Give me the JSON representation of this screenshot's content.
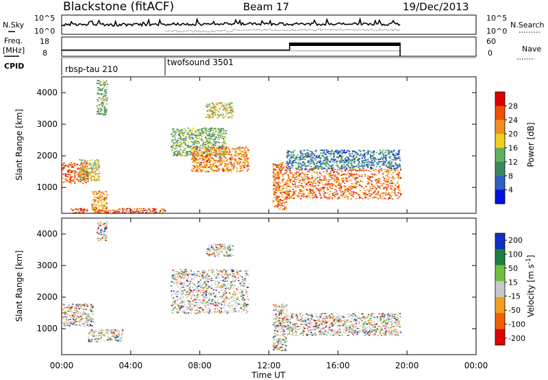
{
  "header": {
    "station": "Blackstone (fitACF)",
    "beam": "Beam 17",
    "date": "19/Dec/2013"
  },
  "noise_panel": {
    "left_label": "N.Sky",
    "left_ticks": [
      "10^5",
      "10^0"
    ],
    "right_ticks": [
      "10^5",
      "10^0"
    ],
    "right_label": "N.Search"
  },
  "freq_panel": {
    "label_line1": "Freq.",
    "label_line2": "[MHz]",
    "left_ticks": [
      "18",
      "8"
    ],
    "right_ticks": [
      "60",
      "0"
    ],
    "right_label": "Nave"
  },
  "cpid_panel": {
    "label": "CPID",
    "programs": [
      {
        "name": "rbsp-tau 210",
        "start_hour": 0.0
      },
      {
        "name": "twofsound 3501",
        "start_hour": 6.0
      }
    ]
  },
  "colors": {
    "power_scale": [
      "#0010e0",
      "#3060c0",
      "#3a8a60",
      "#60b060",
      "#f0d020",
      "#f09020",
      "#f05000",
      "#e00000"
    ],
    "velocity_scale": [
      "#1030c0",
      "#208040",
      "#70c040",
      "#c8c8c8",
      "#f0a020",
      "#f06000",
      "#e00000"
    ]
  },
  "chart_data": [
    {
      "type": "heatmap",
      "panel": "power",
      "ylabel": "Slant Range [km]",
      "y_ticks": [
        "1000",
        "2000",
        "3000",
        "4000"
      ],
      "ylim": [
        180,
        4500
      ],
      "xlim": [
        0,
        24
      ],
      "colorbar": {
        "label": "Power [dB]",
        "ticks": [
          "4",
          "8",
          "12",
          "16",
          "20",
          "24",
          "28"
        ],
        "range": [
          0,
          32
        ]
      },
      "scatter_regions": [
        {
          "t0": 0.0,
          "t1": 1.5,
          "r0": 1150,
          "r1": 1800,
          "level": 0.85
        },
        {
          "t0": 1.0,
          "t1": 2.2,
          "r0": 1200,
          "r1": 1900,
          "level": 0.55
        },
        {
          "t0": 1.7,
          "t1": 2.6,
          "r0": 200,
          "r1": 900,
          "level": 0.7
        },
        {
          "t0": 0.5,
          "t1": 6.0,
          "r0": 200,
          "r1": 350,
          "level": 0.9
        },
        {
          "t0": 2.0,
          "t1": 2.6,
          "r0": 3300,
          "r1": 4400,
          "level": 0.35
        },
        {
          "t0": 6.3,
          "t1": 9.5,
          "r0": 2000,
          "r1": 2900,
          "level": 0.4
        },
        {
          "t0": 7.5,
          "t1": 10.8,
          "r0": 1500,
          "r1": 2300,
          "level": 0.75
        },
        {
          "t0": 8.3,
          "t1": 9.9,
          "r0": 3200,
          "r1": 3700,
          "level": 0.55
        },
        {
          "t0": 12.2,
          "t1": 13.0,
          "r0": 300,
          "r1": 1800,
          "level": 0.8
        },
        {
          "t0": 13.0,
          "t1": 19.6,
          "r0": 650,
          "r1": 1600,
          "level": 0.8
        },
        {
          "t0": 13.0,
          "t1": 19.6,
          "r0": 1600,
          "r1": 2200,
          "level": 0.25
        }
      ]
    },
    {
      "type": "heatmap",
      "panel": "velocity",
      "ylabel": "Slant Range [km]",
      "y_ticks": [
        "1000",
        "2000",
        "3000",
        "4000"
      ],
      "ylim": [
        180,
        4500
      ],
      "xlim": [
        0,
        24
      ],
      "colorbar": {
        "label": "Velocity [m s",
        "label_sup": "-1",
        "label_end": "]",
        "ticks": [
          "200",
          "100",
          "50",
          "15",
          "-15",
          "-50",
          "-100",
          "-200"
        ],
        "range": [
          -250,
          250
        ]
      },
      "scatter_regions": [
        {
          "t0": 0.0,
          "t1": 1.8,
          "r0": 1100,
          "r1": 1800,
          "level": 0.5
        },
        {
          "t0": 1.5,
          "t1": 3.5,
          "r0": 600,
          "r1": 1000,
          "level": 0.5
        },
        {
          "t0": 2.0,
          "t1": 2.6,
          "r0": 3800,
          "r1": 4400,
          "level": 0.1
        },
        {
          "t0": 6.3,
          "t1": 10.8,
          "r0": 1500,
          "r1": 2900,
          "level": 0.5
        },
        {
          "t0": 8.3,
          "t1": 9.9,
          "r0": 3300,
          "r1": 3700,
          "level": 0.3
        },
        {
          "t0": 12.2,
          "t1": 13.0,
          "r0": 300,
          "r1": 1800,
          "level": 0.65
        },
        {
          "t0": 13.0,
          "t1": 19.6,
          "r0": 800,
          "r1": 1500,
          "level": 0.5
        }
      ]
    }
  ],
  "x_axis": {
    "ticks": [
      "00:00",
      "04:00",
      "08:00",
      "12:00",
      "16:00",
      "20:00",
      "00:00"
    ],
    "label": "Time UT",
    "range_hours": [
      0,
      24
    ]
  }
}
